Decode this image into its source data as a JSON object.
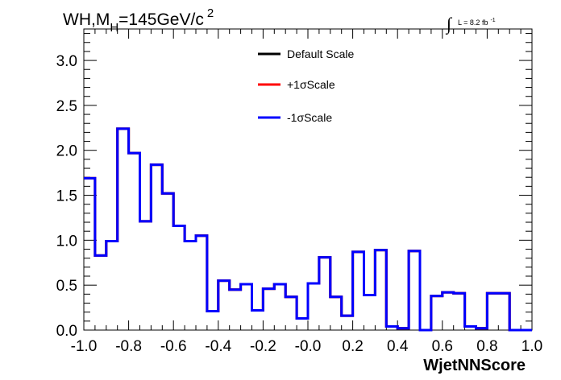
{
  "chart_data": {
    "type": "line",
    "title": "WH,M",
    "title_sub": "H",
    "title_rest": "=145GeV/c",
    "title_sup": "2",
    "lumi_label": "L = 8.2 fb",
    "lumi_sup": "-1",
    "integral_symbol": "∫",
    "xlabel": "WjetNNScore",
    "ylabel": "",
    "xlim": [
      -1.0,
      1.0
    ],
    "ylim": [
      0,
      3.35
    ],
    "x_ticks": [
      "-1.0",
      "-0.8",
      "-0.6",
      "-0.4",
      "-0.2",
      "-0.0",
      "0.2",
      "0.4",
      "0.6",
      "0.8",
      "1.0"
    ],
    "y_ticks": [
      "0.0",
      "0.5",
      "1.0",
      "1.5",
      "2.0",
      "2.5",
      "3.0"
    ],
    "bin_edges": [
      -1.0,
      -0.95,
      -0.9,
      -0.85,
      -0.8,
      -0.75,
      -0.7,
      -0.65,
      -0.6,
      -0.55,
      -0.5,
      -0.45,
      -0.4,
      -0.35,
      -0.3,
      -0.25,
      -0.2,
      -0.15,
      -0.1,
      -0.05,
      0.0,
      0.05,
      0.1,
      0.15,
      0.2,
      0.25,
      0.3,
      0.35,
      0.4,
      0.45,
      0.5,
      0.55,
      0.6,
      0.65,
      0.7,
      0.75,
      0.8,
      0.85,
      0.9,
      0.95,
      1.0
    ],
    "series": [
      {
        "name": "Default Scale",
        "color": "#000000",
        "values": [
          1.69,
          0.83,
          0.99,
          2.24,
          1.97,
          1.21,
          1.84,
          1.52,
          1.16,
          0.99,
          1.05,
          0.21,
          0.55,
          0.45,
          0.51,
          0.22,
          0.46,
          0.51,
          0.37,
          0.13,
          0.52,
          0.81,
          0.37,
          0.16,
          0.87,
          0.39,
          0.89,
          0.04,
          0.02,
          0.88,
          0.0,
          0.38,
          0.42,
          0.41,
          0.04,
          0.02,
          0.41,
          0.41,
          0.0,
          0.0
        ]
      },
      {
        "name": "+1σScale",
        "color": "#ff0000",
        "values": [
          1.69,
          0.83,
          0.99,
          2.24,
          1.97,
          1.21,
          1.84,
          1.52,
          1.16,
          0.99,
          1.05,
          0.21,
          0.55,
          0.45,
          0.51,
          0.22,
          0.46,
          0.51,
          0.37,
          0.13,
          0.52,
          0.81,
          0.37,
          0.16,
          0.87,
          0.39,
          0.89,
          0.04,
          0.02,
          0.88,
          0.0,
          0.38,
          0.42,
          0.41,
          0.04,
          0.02,
          0.41,
          0.41,
          0.0,
          0.0
        ]
      },
      {
        "name": "-1σScale",
        "color": "#0000ff",
        "values": [
          1.69,
          0.83,
          0.99,
          2.24,
          1.97,
          1.21,
          1.84,
          1.52,
          1.16,
          0.99,
          1.05,
          0.21,
          0.55,
          0.45,
          0.51,
          0.22,
          0.46,
          0.51,
          0.37,
          0.13,
          0.52,
          0.81,
          0.37,
          0.16,
          0.87,
          0.39,
          0.89,
          0.04,
          0.02,
          0.88,
          0.0,
          0.38,
          0.42,
          0.41,
          0.04,
          0.02,
          0.41,
          0.41,
          0.0,
          0.0
        ]
      }
    ],
    "legend_position": "top-center",
    "grid": false
  }
}
